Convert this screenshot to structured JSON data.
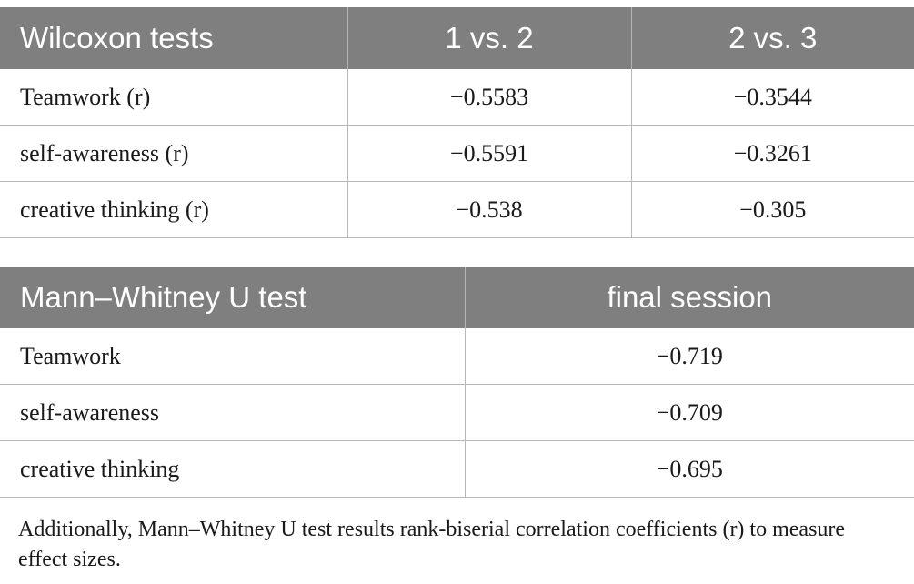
{
  "wilcoxon": {
    "headers": [
      "Wilcoxon tests",
      "1 vs. 2",
      "2 vs. 3"
    ],
    "rows": [
      [
        "Teamwork (r)",
        "−0.5583",
        "−0.3544"
      ],
      [
        "self-awareness (r)",
        "−0.5591",
        "−0.3261"
      ],
      [
        "creative thinking (r)",
        "−0.538",
        "−0.305"
      ]
    ]
  },
  "mann_whitney": {
    "headers": [
      "Mann–Whitney U test",
      "final session"
    ],
    "rows": [
      [
        "Teamwork",
        "−0.719"
      ],
      [
        "self-awareness",
        "−0.709"
      ],
      [
        "creative thinking",
        "−0.695"
      ]
    ]
  },
  "footnote": "Additionally, Mann–Whitney U test results rank-biserial correlation coefficients (r) to measure effect sizes.",
  "colors": {
    "header_bg": "#7f7f7f",
    "header_text": "#ffffff",
    "border": "#b7b7b7"
  }
}
